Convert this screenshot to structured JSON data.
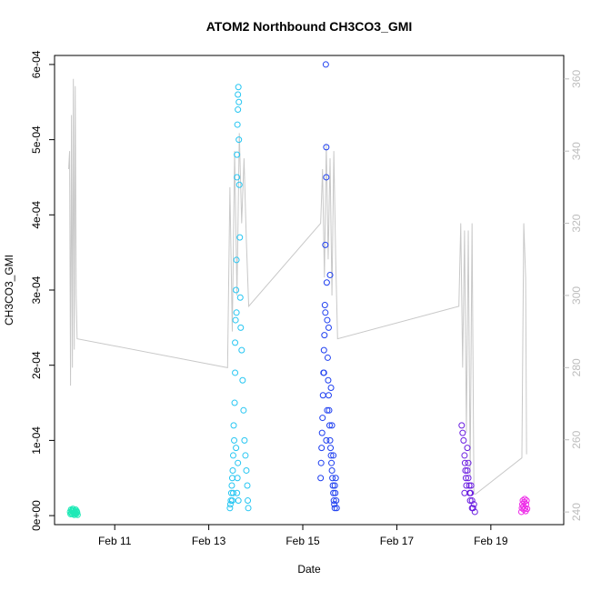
{
  "chart_data": {
    "type": "scatter",
    "title": "ATOM2 Northbound CH3CO3_GMI",
    "xlabel": "Date",
    "ylabel": "CH3CO3_GMI",
    "xlim": [
      9.72,
      20.55
    ],
    "ylim": [
      -1.2e-05,
      0.000612
    ],
    "y2lim": [
      236.5,
      366.5
    ],
    "x_ticks": [
      {
        "value": 11,
        "label": "Feb 11"
      },
      {
        "value": 13,
        "label": "Feb 13"
      },
      {
        "value": 15,
        "label": "Feb 15"
      },
      {
        "value": 17,
        "label": "Feb 17"
      },
      {
        "value": 19,
        "label": "Feb 19"
      }
    ],
    "y_ticks": [
      {
        "value": 0,
        "label": "0e+00"
      },
      {
        "value": 0.0001,
        "label": "1e-04"
      },
      {
        "value": 0.0002,
        "label": "2e-04"
      },
      {
        "value": 0.0003,
        "label": "3e-04"
      },
      {
        "value": 0.0004,
        "label": "4e-04"
      },
      {
        "value": 0.0005,
        "label": "5e-04"
      },
      {
        "value": 0.0006,
        "label": "6e-04"
      }
    ],
    "y2_ticks": [
      {
        "value": 240,
        "label": "240"
      },
      {
        "value": 260,
        "label": "260"
      },
      {
        "value": 280,
        "label": "280"
      },
      {
        "value": 300,
        "label": "300"
      },
      {
        "value": 320,
        "label": "320"
      },
      {
        "value": 340,
        "label": "340"
      },
      {
        "value": 360,
        "label": "360"
      }
    ],
    "grid": false,
    "legend": "none",
    "point_series": [
      {
        "color": "#1de9b6",
        "x": [
          10.05,
          10.07,
          10.08,
          10.09,
          10.1,
          10.11,
          10.12,
          10.13,
          10.14,
          10.15,
          10.16,
          10.17,
          10.18,
          10.19,
          10.2,
          10.21,
          10.06,
          10.1,
          10.14,
          10.18
        ],
        "y": [
          5e-06,
          8e-06,
          3e-06,
          6e-06,
          2e-06,
          9e-06,
          4e-06,
          7e-06,
          1e-06,
          5e-06,
          3e-06,
          8e-06,
          2e-06,
          6e-06,
          4e-06,
          1e-06,
          2e-06,
          7e-06,
          3e-06,
          5e-06
        ]
      },
      {
        "color": "#26c6f2",
        "x": [
          13.45,
          13.46,
          13.47,
          13.48,
          13.49,
          13.5,
          13.5,
          13.51,
          13.52,
          13.52,
          13.53,
          13.54,
          13.55,
          13.56,
          13.56,
          13.57,
          13.58,
          13.59,
          13.6,
          13.6,
          13.61,
          13.62,
          13.62,
          13.63,
          13.64,
          13.64,
          13.65,
          13.66,
          13.67,
          13.68,
          13.7,
          13.72,
          13.74,
          13.76,
          13.78,
          13.8,
          13.82,
          13.83,
          13.84,
          13.6,
          13.61,
          13.62,
          13.63,
          13.58,
          13.59
        ],
        "y": [
          1e-05,
          1.5e-05,
          2e-05,
          3e-05,
          4e-05,
          5e-05,
          2e-05,
          6e-05,
          8e-05,
          3e-05,
          0.00012,
          0.0001,
          0.00015,
          0.00019,
          0.00023,
          0.00026,
          0.0003,
          0.00034,
          0.00045,
          0.00048,
          0.00052,
          0.00054,
          0.00056,
          0.00057,
          0.00055,
          0.0005,
          0.00044,
          0.00037,
          0.00029,
          0.00025,
          0.00022,
          0.00018,
          0.00014,
          0.0001,
          8e-05,
          6e-05,
          4e-05,
          2e-05,
          1e-05,
          3e-05,
          5e-05,
          7e-05,
          2e-05,
          9e-05,
          0.00027
        ]
      },
      {
        "color": "#1e3ff0",
        "x": [
          15.38,
          15.39,
          15.4,
          15.41,
          15.42,
          15.43,
          15.44,
          15.45,
          15.46,
          15.47,
          15.48,
          15.49,
          15.5,
          15.5,
          15.51,
          15.52,
          15.53,
          15.54,
          15.55,
          15.56,
          15.57,
          15.58,
          15.59,
          15.6,
          15.61,
          15.62,
          15.63,
          15.64,
          15.65,
          15.66,
          15.67,
          15.68,
          15.69,
          15.7,
          15.71,
          15.72,
          15.5,
          15.52,
          15.55,
          15.58,
          15.6,
          15.62,
          15.45,
          15.48,
          15.65,
          15.68
        ],
        "y": [
          5e-05,
          7e-05,
          9e-05,
          0.00011,
          0.00013,
          0.00016,
          0.00019,
          0.00022,
          0.00024,
          0.00028,
          0.00036,
          0.0006,
          0.00049,
          0.00045,
          0.00031,
          0.00026,
          0.00021,
          0.00018,
          0.00016,
          0.00014,
          0.00012,
          0.0001,
          9e-05,
          8e-05,
          7e-05,
          6e-05,
          5e-05,
          4e-05,
          3e-05,
          2e-05,
          1.5e-05,
          1e-05,
          3e-05,
          5e-05,
          2e-05,
          1e-05,
          0.0001,
          0.00014,
          0.00025,
          0.00032,
          0.00017,
          0.00012,
          0.00019,
          0.00027,
          8e-05,
          4e-05
        ]
      },
      {
        "color": "#6a1de0",
        "x": [
          18.38,
          18.4,
          18.42,
          18.44,
          18.45,
          18.46,
          18.47,
          18.48,
          18.5,
          18.52,
          18.54,
          18.55,
          18.56,
          18.57,
          18.58,
          18.6,
          18.62,
          18.64,
          18.66,
          18.5,
          18.52,
          18.44,
          18.6
        ],
        "y": [
          0.00012,
          0.00011,
          0.0001,
          8e-05,
          7e-05,
          6e-05,
          5e-05,
          4e-05,
          6e-05,
          5e-05,
          4e-05,
          3e-05,
          2e-05,
          3e-05,
          4e-05,
          2e-05,
          1e-05,
          1.5e-05,
          5e-06,
          9e-05,
          7e-05,
          3e-05,
          1e-05
        ]
      },
      {
        "color": "#ee2ee8",
        "x": [
          19.65,
          19.66,
          19.67,
          19.68,
          19.69,
          19.7,
          19.71,
          19.72,
          19.73,
          19.74,
          19.75,
          19.76,
          19.77
        ],
        "y": [
          5e-06,
          1e-05,
          1.5e-05,
          2e-05,
          1.2e-05,
          8e-06,
          1.8e-05,
          2.2e-05,
          1e-05,
          6e-06,
          1.5e-05,
          2e-05,
          9e-06
        ]
      }
    ],
    "line_series": {
      "color": "#c8c8c8",
      "x": [
        10.02,
        10.04,
        10.06,
        10.08,
        10.1,
        10.12,
        10.14,
        10.16,
        10.18,
        10.2,
        13.4,
        13.45,
        13.5,
        13.55,
        13.6,
        13.65,
        13.7,
        13.75,
        13.8,
        13.85,
        15.38,
        15.42,
        15.46,
        15.5,
        15.54,
        15.58,
        15.62,
        15.66,
        15.7,
        15.74,
        18.32,
        18.36,
        18.4,
        18.44,
        18.48,
        18.52,
        18.56,
        18.6,
        18.64,
        18.68,
        19.66,
        19.7,
        19.74,
        19.76
      ],
      "y": [
        335,
        340,
        275,
        350,
        280,
        360,
        285,
        358,
        300,
        288,
        280,
        330,
        290,
        340,
        300,
        345,
        320,
        338,
        315,
        297,
        320,
        335,
        305,
        342,
        310,
        338,
        300,
        340,
        310,
        288,
        297,
        320,
        280,
        318,
        262,
        318,
        250,
        320,
        245,
        245,
        255,
        320,
        305,
        256
      ]
    }
  }
}
